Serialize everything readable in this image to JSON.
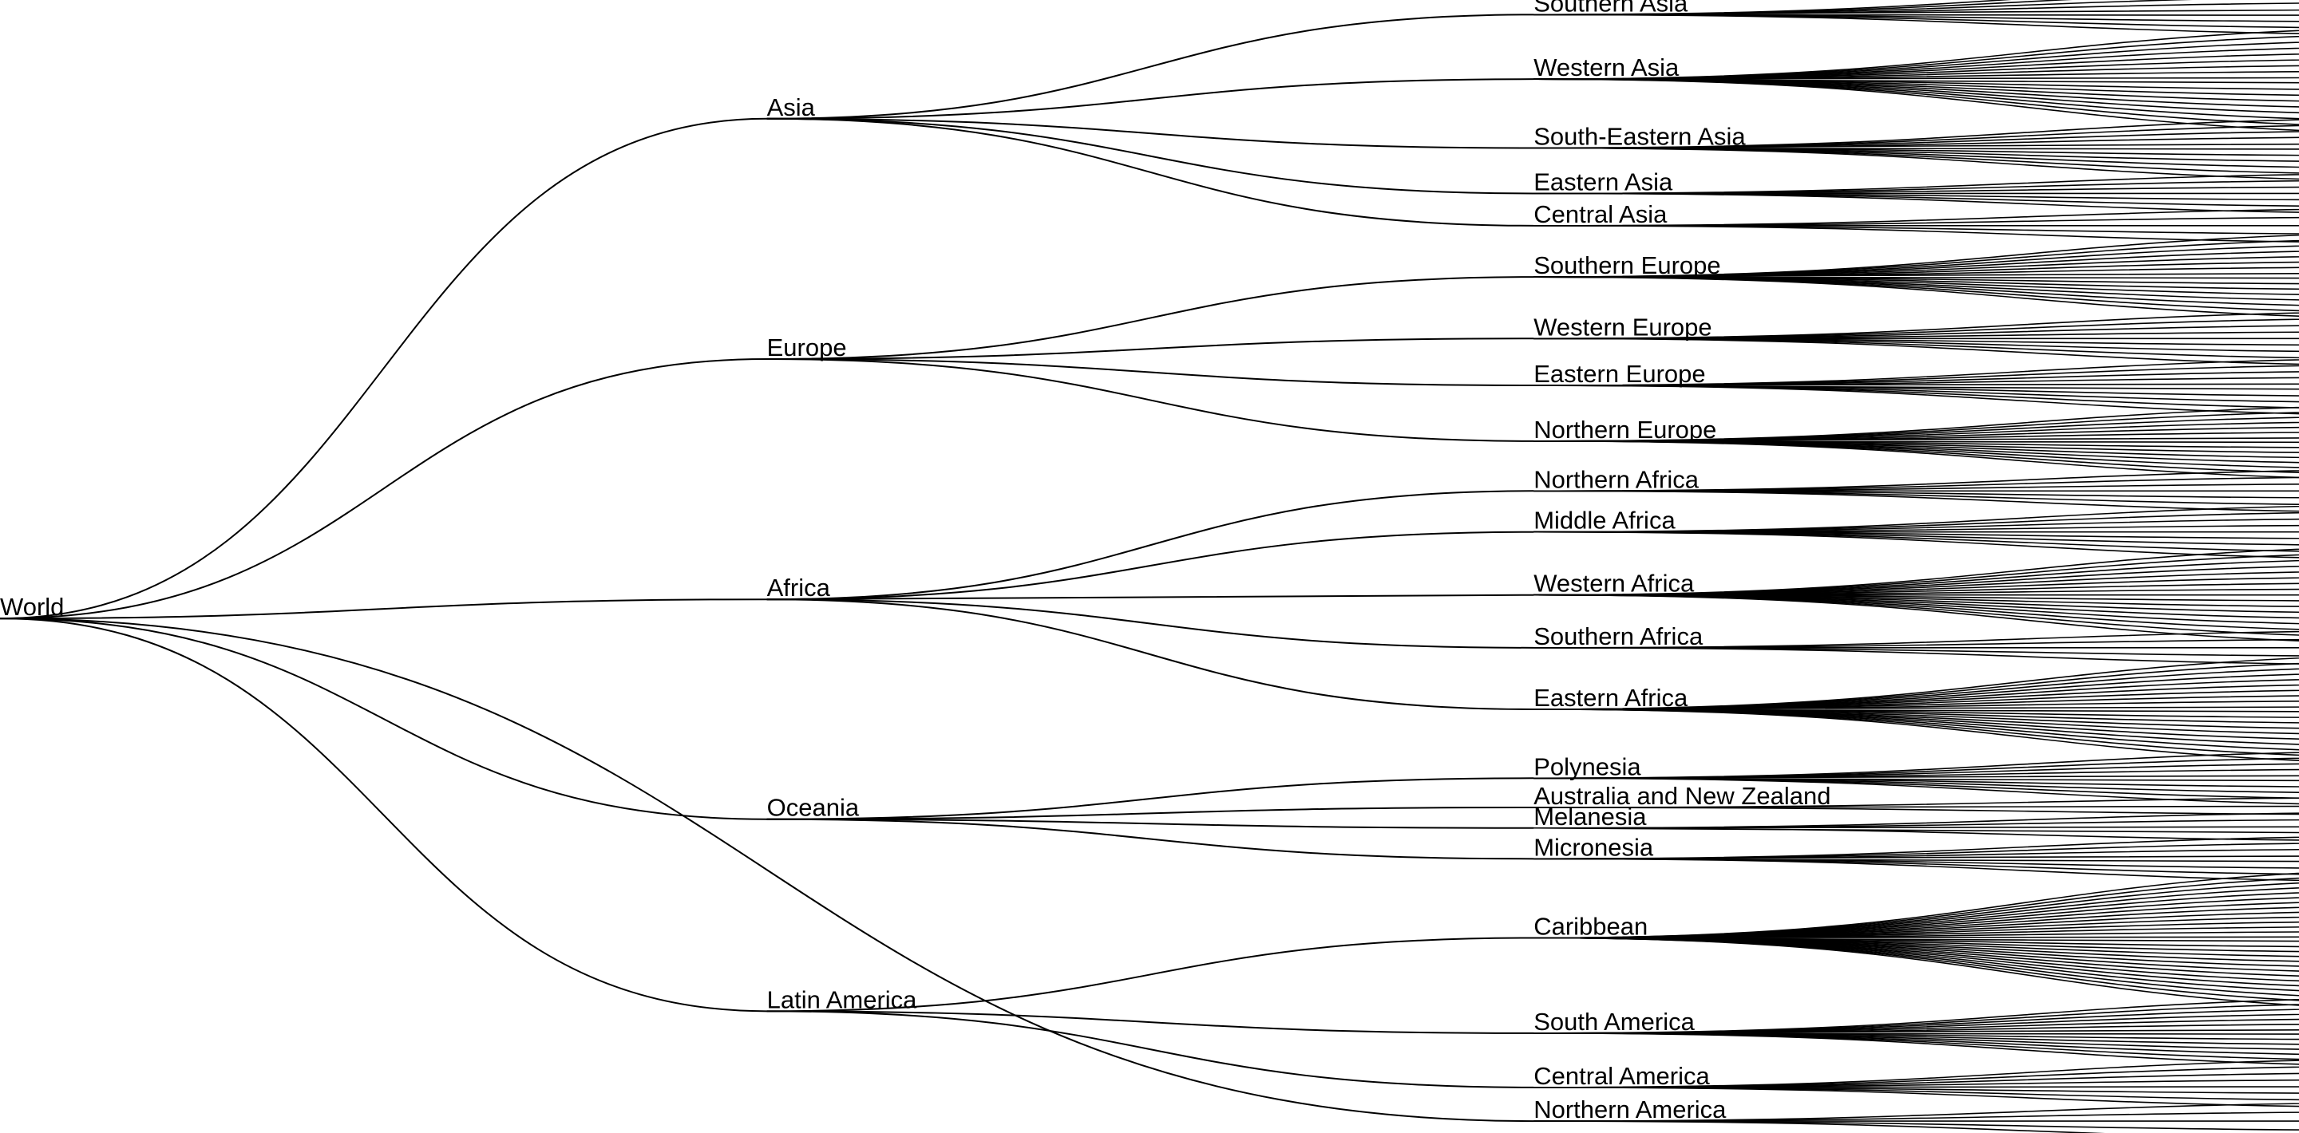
{
  "tree": {
    "name": "World",
    "children": [
      {
        "name": "Asia",
        "children": [
          {
            "name": "Southern Asia",
            "leaf_count": 9
          },
          {
            "name": "Western Asia",
            "leaf_count": 18
          },
          {
            "name": "South-Eastern Asia",
            "leaf_count": 11
          },
          {
            "name": "Eastern Asia",
            "leaf_count": 7
          },
          {
            "name": "Central Asia",
            "leaf_count": 5
          }
        ]
      },
      {
        "name": "Europe",
        "children": [
          {
            "name": "Southern Europe",
            "leaf_count": 16
          },
          {
            "name": "Western Europe",
            "leaf_count": 9
          },
          {
            "name": "Eastern Europe",
            "leaf_count": 10
          },
          {
            "name": "Northern Europe",
            "leaf_count": 15
          }
        ]
      },
      {
        "name": "Africa",
        "children": [
          {
            "name": "Northern Africa",
            "leaf_count": 7
          },
          {
            "name": "Middle Africa",
            "leaf_count": 9
          },
          {
            "name": "Western Africa",
            "leaf_count": 17
          },
          {
            "name": "Southern Africa",
            "leaf_count": 5
          },
          {
            "name": "Eastern Africa",
            "leaf_count": 20
          }
        ]
      },
      {
        "name": "Oceania",
        "children": [
          {
            "name": "Polynesia",
            "leaf_count": 10
          },
          {
            "name": "Australia and New Zealand",
            "leaf_count": 3
          },
          {
            "name": "Melanesia",
            "leaf_count": 5
          },
          {
            "name": "Micronesia",
            "leaf_count": 8
          }
        ]
      },
      {
        "name": "Latin America",
        "children": [
          {
            "name": "Caribbean",
            "leaf_count": 28
          },
          {
            "name": "South America",
            "leaf_count": 14
          },
          {
            "name": "Central America",
            "leaf_count": 8
          }
        ]
      },
      {
        "name": "Northern America",
        "leaf_count": 5
      }
    ]
  }
}
